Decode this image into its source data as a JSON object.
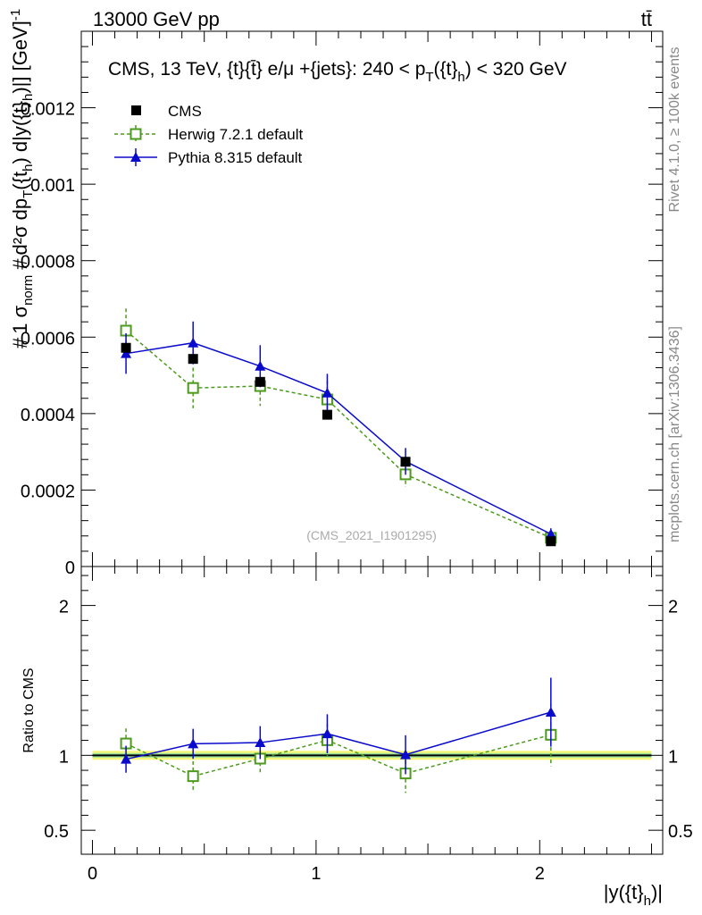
{
  "header": {
    "left": "13000 GeV pp",
    "right": "tt̄"
  },
  "side_labels": {
    "rivet": "Rivet 4.1.0, ≥ 100k events",
    "mcplots": "mcplots.cern.ch [arXiv:1306.3436]"
  },
  "colors": {
    "cms": "#000000",
    "herwig": "#4d9a1f",
    "pythia": "#0a0acc",
    "band_yellow": "#f5f57a",
    "band_green": "#9be39b"
  },
  "chart_data": [
    {
      "type": "scatter",
      "title": "CMS, 13 TeV, {t}{t̄} e/μ +{jets}: 240 <  p_T({t}_h) < 320 GeV",
      "title_main": "CMS, 13 TeV, {t}{t̄} e/μ +{jets}: 240 <  p",
      "title_sub_T": "T",
      "title_mid": "({t}",
      "title_sub_h": "h",
      "title_end": ") < 320 GeV",
      "watermark": "(CMS_2021_I1901295)",
      "ylabel": "1/σ_norm d²σ / dp_T({t}_h) d|y({t}_h)| [GeV]^-1",
      "ylabel_parts": [
        "#",
        "1",
        "σ",
        "norm",
        "#",
        "d²σ",
        "dp",
        "T",
        "({t",
        "h",
        ") d|y({t}",
        "h",
        ")|] [GeV]",
        "-1"
      ],
      "xlim": [
        -0.05,
        2.55
      ],
      "ylim": [
        0,
        0.0014
      ],
      "yticks": [
        0,
        0.0002,
        0.0004,
        0.0006,
        0.0008,
        0.001,
        0.0012
      ],
      "ytick_labels": [
        "0",
        "0.0002",
        "0.0004",
        "0.0006",
        "0.0008",
        "0.001",
        "0.0012"
      ],
      "legend_position": "top-left",
      "series": [
        {
          "name": "CMS",
          "style": "square-filled",
          "x": [
            0.15,
            0.45,
            0.75,
            1.05,
            1.4,
            2.05
          ],
          "values": [
            0.000572,
            0.000543,
            0.000483,
            0.000397,
            0.000274,
            6.6e-05
          ],
          "errors": [
            5e-06,
            5e-06,
            5e-06,
            5e-06,
            5e-06,
            5e-06
          ]
        },
        {
          "name": "Herwig 7.2.1 default",
          "style": "square-open-dashed",
          "x": [
            0.15,
            0.45,
            0.75,
            1.05,
            1.4,
            2.05
          ],
          "values": [
            0.000617,
            0.000467,
            0.000472,
            0.000437,
            0.000241,
            7.5e-05
          ],
          "errors": [
            5.8e-05,
            5.3e-05,
            5.2e-05,
            4.9e-05,
            3.3e-05,
            1.4e-05
          ]
        },
        {
          "name": "Pythia 8.315 default",
          "style": "triangle-filled-solid",
          "x": [
            0.15,
            0.45,
            0.75,
            1.05,
            1.4,
            2.05
          ],
          "values": [
            0.000557,
            0.000585,
            0.000524,
            0.000454,
            0.000275,
            8.5e-05
          ],
          "errors": [
            5.3e-05,
            5.6e-05,
            5.5e-05,
            5e-05,
            3.5e-05,
            1.5e-05
          ]
        }
      ]
    },
    {
      "type": "scatter",
      "title": "Ratio to CMS",
      "ylabel": "Ratio to CMS",
      "xlabel": "|y({t}_h)|",
      "xlabel_main": "|y({t}",
      "xlabel_sub": "h",
      "xlabel_end": ")|",
      "xlim": [
        -0.05,
        2.55
      ],
      "ylim": [
        0.34,
        2.26
      ],
      "xticks": [
        0,
        1,
        2
      ],
      "xtick_labels": [
        "0",
        "1",
        "2"
      ],
      "yticks": [
        0.5,
        1,
        2
      ],
      "ytick_labels": [
        "0.5",
        "1",
        "2"
      ],
      "band_yellow": [
        0.97,
        1.03
      ],
      "band_green": [
        0.985,
        1.015
      ],
      "series": [
        {
          "name": "Herwig 7.2.1 default",
          "style": "square-open-dashed",
          "x": [
            0.15,
            0.45,
            0.75,
            1.05,
            1.4,
            2.05
          ],
          "values": [
            1.079,
            0.861,
            0.978,
            1.101,
            0.879,
            1.137
          ],
          "errors": [
            0.1,
            0.1,
            0.1,
            0.11,
            0.13,
            0.21
          ]
        },
        {
          "name": "Pythia 8.315 default",
          "style": "triangle-filled-solid",
          "x": [
            0.15,
            0.45,
            0.75,
            1.05,
            1.4,
            2.05
          ],
          "values": [
            0.974,
            1.077,
            1.085,
            1.144,
            1.004,
            1.288
          ],
          "errors": [
            0.09,
            0.1,
            0.11,
            0.13,
            0.13,
            0.23
          ]
        }
      ]
    }
  ]
}
